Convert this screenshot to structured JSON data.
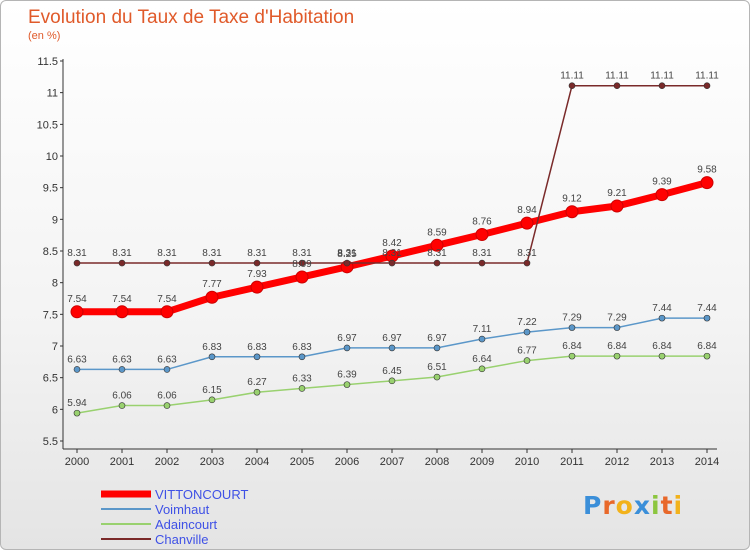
{
  "chart_data": {
    "type": "line",
    "title": "Evolution du Taux de Taxe d'Habitation",
    "subtitle": "(en %)",
    "x": [
      2000,
      2001,
      2002,
      2003,
      2004,
      2005,
      2006,
      2007,
      2008,
      2009,
      2010,
      2011,
      2012,
      2013,
      2014
    ],
    "ylim": [
      5.5,
      11.5
    ],
    "yticks": [
      5.5,
      6,
      6.5,
      7,
      7.5,
      8,
      8.5,
      9,
      9.5,
      10,
      10.5,
      11,
      11.5
    ],
    "ytick_labels": [
      "5.5",
      "6",
      "6.5",
      "7",
      "7.5",
      "8",
      "8.5",
      "9",
      "9.5",
      "10",
      "10.5",
      "11",
      "11.5"
    ],
    "grid": false,
    "legend_position": "bottom-left",
    "series": [
      {
        "name": "VITTONCOURT",
        "color": "#ff0000",
        "values": [
          7.54,
          7.54,
          7.54,
          7.77,
          7.93,
          8.09,
          8.25,
          8.42,
          8.59,
          8.76,
          8.94,
          9.12,
          9.21,
          9.39,
          9.58
        ],
        "labels": [
          "7.54",
          "7.54",
          "7.54",
          "7.77",
          "7.93",
          "8.09",
          "8.25",
          "8.42",
          "8.59",
          "8.76",
          "8.94",
          "9.12",
          "9.21",
          "9.39",
          "9.58"
        ]
      },
      {
        "name": "Voimhaut",
        "color": "#5b97c9",
        "values": [
          6.63,
          6.63,
          6.63,
          6.83,
          6.83,
          6.83,
          6.97,
          6.97,
          6.97,
          7.11,
          7.22,
          7.29,
          7.29,
          7.44,
          7.44
        ],
        "labels": [
          "6.63",
          "6.63",
          "6.63",
          "6.83",
          "6.83",
          "6.83",
          "6.97",
          "6.97",
          "6.97",
          "7.11",
          "7.22",
          "7.29",
          "7.29",
          "7.44",
          "7.44"
        ]
      },
      {
        "name": "Adaincourt",
        "color": "#99d16f",
        "values": [
          5.94,
          6.06,
          6.06,
          6.15,
          6.27,
          6.33,
          6.39,
          6.45,
          6.51,
          6.64,
          6.77,
          6.84,
          6.84,
          6.84,
          6.84
        ],
        "labels": [
          "5.94",
          "6.06",
          "6.06",
          "6.15",
          "6.27",
          "6.33",
          "6.39",
          "6.45",
          "6.51",
          "6.64",
          "6.77",
          "6.84",
          "6.84",
          "6.84",
          "6.84"
        ]
      },
      {
        "name": "Chanville",
        "color": "#7a2a2a",
        "values": [
          8.31,
          8.31,
          8.31,
          8.31,
          8.31,
          8.31,
          8.31,
          8.31,
          8.31,
          8.31,
          8.31,
          11.11,
          11.11,
          11.11,
          11.11
        ],
        "labels": [
          "8.31",
          "8.31",
          "8.31",
          "8.31",
          "8.31",
          "8.31",
          "8.31",
          "8.31",
          "8.31",
          "8.31",
          "8.31",
          "11.11",
          "11.11",
          "11.11",
          "11.11"
        ]
      }
    ]
  },
  "legend": {
    "items": [
      {
        "name": "VITTONCOURT",
        "color": "#ff0000",
        "text_color": "#3f51e6"
      },
      {
        "name": "Voimhaut",
        "color": "#5b97c9",
        "text_color": "#3f51e6"
      },
      {
        "name": "Adaincourt",
        "color": "#99d16f",
        "text_color": "#3f51e6"
      },
      {
        "name": "Chanville",
        "color": "#7a2a2a",
        "text_color": "#3f51e6"
      }
    ]
  },
  "logo": {
    "letters": [
      "P",
      "r",
      "o",
      "x",
      "i",
      "t",
      "i"
    ],
    "colors": [
      "#3b8fd9",
      "#e8682a",
      "#f2b21b",
      "#3b8fd9",
      "#8cc63f",
      "#e8682a",
      "#f2b21b"
    ]
  }
}
